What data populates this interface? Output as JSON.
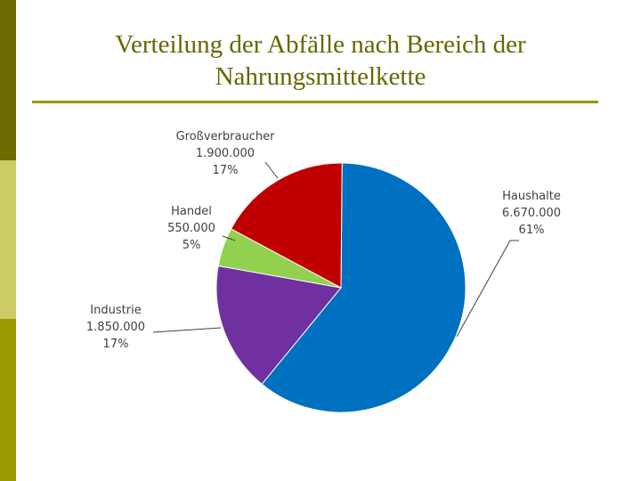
{
  "title": "Verteilung der Abfälle nach Bereich der Nahrungsmittelkette",
  "chart_data": {
    "type": "pie",
    "slices": [
      {
        "name": "Haushalte",
        "value": 6670000,
        "value_label": "6.670.000",
        "percent_label": "61%",
        "color": "#0070c0"
      },
      {
        "name": "Industrie",
        "value": 1850000,
        "value_label": "1.850.000",
        "percent_label": "17%",
        "color": "#7030a0"
      },
      {
        "name": "Handel",
        "value": 550000,
        "value_label": "550.000",
        "percent_label": "5%",
        "color": "#92d050"
      },
      {
        "name": "Großverbraucher",
        "value": 1900000,
        "value_label": "1.900.000",
        "percent_label": "17%",
        "color": "#c00000"
      }
    ]
  }
}
